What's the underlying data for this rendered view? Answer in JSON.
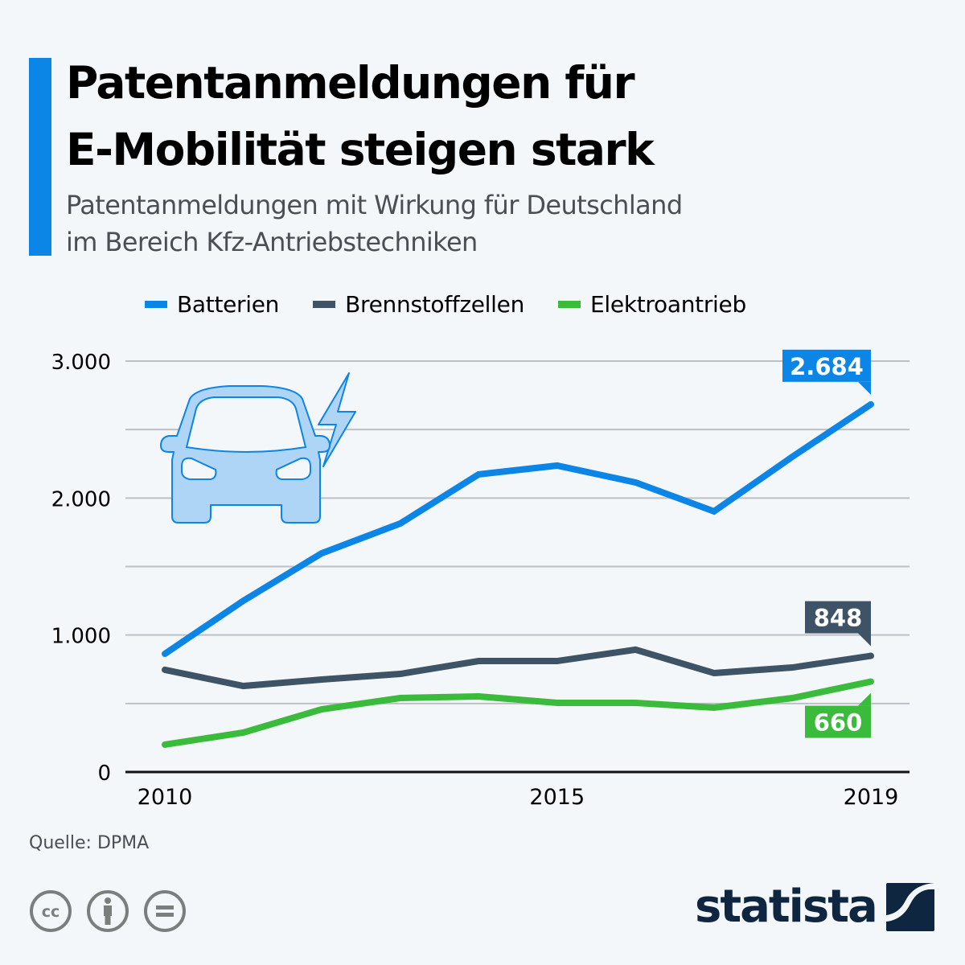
{
  "header": {
    "title_line1": "Patentanmeldungen für",
    "title_line2": "E-Mobilität steigen stark",
    "subtitle_line1": "Patentanmeldungen mit Wirkung für Deutschland",
    "subtitle_line2": "im Bereich Kfz-Antriebstechniken",
    "accent_color": "#0b85e6"
  },
  "legend": [
    {
      "label": "Batterien",
      "color": "#0b85e6"
    },
    {
      "label": "Brennstoffzellen",
      "color": "#3f5366"
    },
    {
      "label": "Elektroantrieb",
      "color": "#3bbb3b"
    }
  ],
  "illustration": {
    "icon": "electric-car-icon",
    "color": "#0b85e6",
    "fill": "#aed5f5"
  },
  "chart_data": {
    "type": "line",
    "title": "Patentanmeldungen für E-Mobilität steigen stark",
    "subtitle": "Patentanmeldungen mit Wirkung für Deutschland im Bereich Kfz-Antriebstechniken",
    "x": [
      2010,
      2011,
      2012,
      2013,
      2014,
      2015,
      2016,
      2017,
      2018,
      2019
    ],
    "x_tick_labels": [
      "2010",
      "2015",
      "2019"
    ],
    "x_tick_values": [
      2010,
      2015,
      2019
    ],
    "y_tick_labels": [
      "0",
      "1.000",
      "2.000",
      "3.000"
    ],
    "y_tick_values": [
      0,
      1000,
      2000,
      3000
    ],
    "ylim": [
      0,
      3000
    ],
    "grid_step": 500,
    "grid": true,
    "legend_position": "top",
    "xlabel": "",
    "ylabel": "",
    "series": [
      {
        "name": "Batterien",
        "color": "#0b85e6",
        "values": [
          863,
          1250,
          1597,
          1814,
          2173,
          2237,
          2114,
          1903,
          2302,
          2684
        ],
        "end_label": "2.684",
        "label_position": "above"
      },
      {
        "name": "Brennstoffzellen",
        "color": "#3f5366",
        "values": [
          746,
          628,
          675,
          716,
          810,
          810,
          893,
          722,
          763,
          848
        ],
        "end_label": "848",
        "label_position": "above"
      },
      {
        "name": "Elektroantrieb",
        "color": "#3bbb3b",
        "values": [
          200,
          288,
          458,
          540,
          552,
          505,
          505,
          470,
          540,
          660
        ],
        "end_label": "660",
        "label_position": "below"
      }
    ]
  },
  "footer": {
    "source": "Quelle: DPMA",
    "license_icons": [
      "cc-icon",
      "attribution-icon",
      "no-derivatives-icon"
    ],
    "brand": "statista",
    "brand_color": "#0f2640"
  }
}
